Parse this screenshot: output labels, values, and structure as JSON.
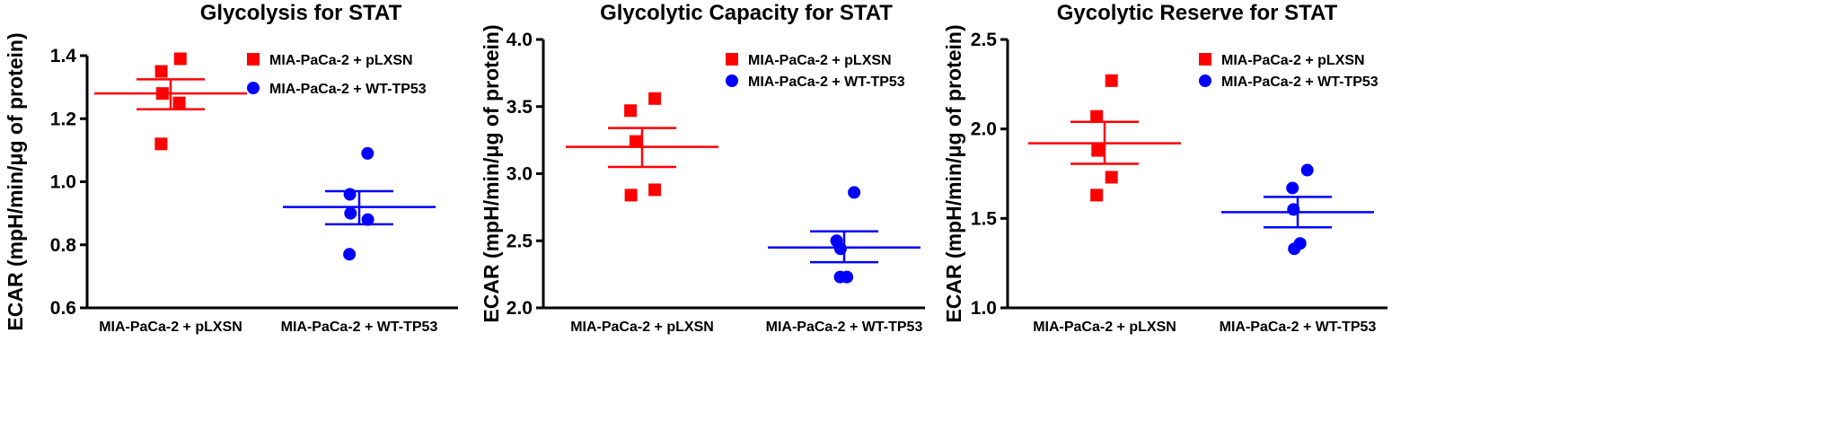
{
  "colors": {
    "pLXSN": "#ff0000",
    "WT-TP53": "#0000ff",
    "axis": "#000000"
  },
  "chart_data": [
    {
      "type": "scatter",
      "title": "Glycolysis for STAT",
      "ylabel": "ECAR (mpH/min/μg of protein)",
      "ylim": [
        0.6,
        1.4
      ],
      "yticks": [
        "0.6",
        "0.8",
        "1.0",
        "1.2",
        "1.4"
      ],
      "categories": [
        "MIA-PaCa-2 + pLXSN",
        "MIA-PaCa-2 + WT-TP53"
      ],
      "legend_position": "top-right",
      "series": [
        {
          "name": "MIA-PaCa-2 + pLXSN",
          "marker": "square",
          "color": "#ff0000",
          "values": [
            1.39,
            1.35,
            1.28,
            1.25,
            1.12
          ],
          "mean": 1.28,
          "sem_low": 1.23,
          "sem_high": 1.325
        },
        {
          "name": "MIA-PaCa-2 + WT-TP53",
          "marker": "circle",
          "color": "#0000ff",
          "values": [
            1.09,
            0.96,
            0.9,
            0.88,
            0.77
          ],
          "mean": 0.92,
          "sem_low": 0.865,
          "sem_high": 0.97
        }
      ]
    },
    {
      "type": "scatter",
      "title": "Glycolytic Capacity for STAT",
      "ylabel": "ECAR (mpH/min/μg of protein)",
      "ylim": [
        2.0,
        4.0
      ],
      "yticks": [
        "2.0",
        "2.5",
        "3.0",
        "3.5",
        "4.0"
      ],
      "categories": [
        "MIA-PaCa-2 + pLXSN",
        "MIA-PaCa-2 + WT-TP53"
      ],
      "legend_position": "top-right",
      "series": [
        {
          "name": "MIA-PaCa-2 + pLXSN",
          "marker": "square",
          "color": "#ff0000",
          "values": [
            3.56,
            3.47,
            3.24,
            2.88,
            2.84
          ],
          "mean": 3.2,
          "sem_low": 3.05,
          "sem_high": 3.34
        },
        {
          "name": "MIA-PaCa-2 + WT-TP53",
          "marker": "circle",
          "color": "#0000ff",
          "values": [
            2.86,
            2.5,
            2.44,
            2.23,
            2.23
          ],
          "mean": 2.45,
          "sem_low": 2.34,
          "sem_high": 2.57
        }
      ]
    },
    {
      "type": "scatter",
      "title": "Gycolytic Reserve for STAT",
      "ylabel": "ECAR (mpH/min/μg of protein)",
      "ylim": [
        1.0,
        2.5
      ],
      "yticks": [
        "1.0",
        "1.5",
        "2.0",
        "2.5"
      ],
      "categories": [
        "MIA-PaCa-2 + pLXSN",
        "MIA-PaCa-2 + WT-TP53"
      ],
      "legend_position": "top-right",
      "series": [
        {
          "name": "MIA-PaCa-2 + pLXSN",
          "marker": "square",
          "color": "#ff0000",
          "values": [
            2.27,
            2.07,
            1.88,
            1.73,
            1.63
          ],
          "mean": 1.92,
          "sem_low": 1.805,
          "sem_high": 2.04
        },
        {
          "name": "MIA-PaCa-2 + WT-TP53",
          "marker": "circle",
          "color": "#0000ff",
          "values": [
            1.77,
            1.67,
            1.55,
            1.36,
            1.33
          ],
          "mean": 1.535,
          "sem_low": 1.45,
          "sem_high": 1.62
        }
      ]
    }
  ]
}
